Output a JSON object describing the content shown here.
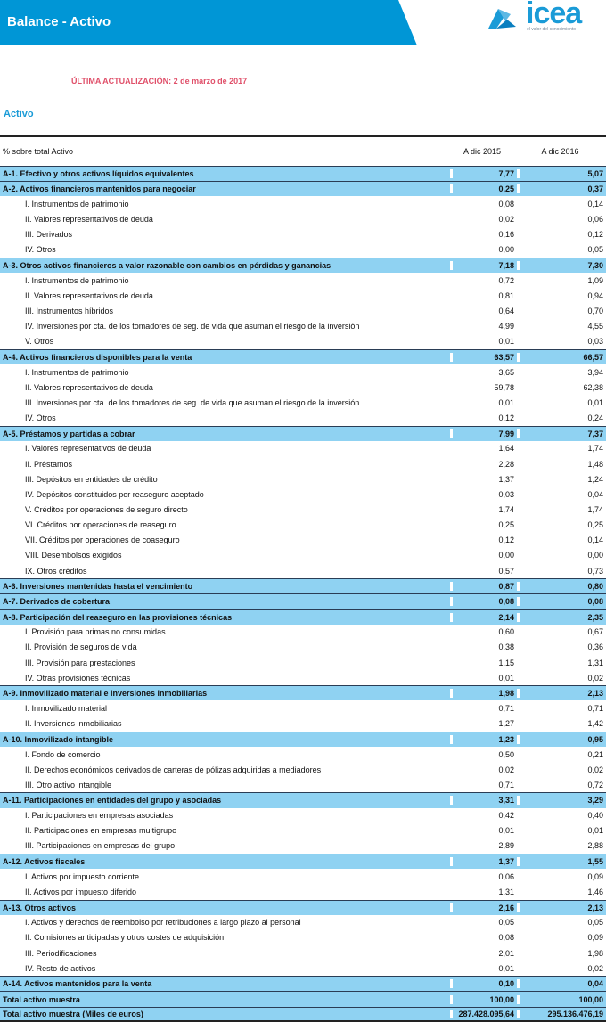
{
  "header": {
    "title": "Balance - Activo",
    "logo_text": "icea",
    "logo_tagline": "el valor del conocimiento",
    "brand_color": "#0096d6"
  },
  "update_label": "ÚLTIMA ACTUALIZACIÓN:  2 de marzo de 2017",
  "section_title": "Activo",
  "table": {
    "columns": [
      "% sobre total Activo",
      "A dic 2015",
      "A dic 2016"
    ],
    "rows": [
      {
        "label": "A-1. Efectivo y otros activos líquidos equivalentes",
        "v2015": "7,77",
        "v2016": "5,07",
        "bold": true
      },
      {
        "label": "A-2. Activos financieros mantenidos para negociar",
        "v2015": "0,25",
        "v2016": "0,37",
        "bold": true
      },
      {
        "label": "I. Instrumentos de patrimonio",
        "v2015": "0,08",
        "v2016": "0,14"
      },
      {
        "label": "II. Valores representativos de deuda",
        "v2015": "0,02",
        "v2016": "0,06"
      },
      {
        "label": "III. Derivados",
        "v2015": "0,16",
        "v2016": "0,12"
      },
      {
        "label": "IV. Otros",
        "v2015": "0,00",
        "v2016": "0,05"
      },
      {
        "label": "A-3. Otros activos financieros a valor razonable con cambios en pérdidas y ganancias",
        "v2015": "7,18",
        "v2016": "7,30",
        "bold": true
      },
      {
        "label": "I. Instrumentos de patrimonio",
        "v2015": "0,72",
        "v2016": "1,09"
      },
      {
        "label": "II. Valores representativos de deuda",
        "v2015": "0,81",
        "v2016": "0,94"
      },
      {
        "label": "III. Instrumentos híbridos",
        "v2015": "0,64",
        "v2016": "0,70"
      },
      {
        "label": "IV. Inversiones por cta. de los tomadores de seg. de vida que asuman el riesgo de la inversión",
        "v2015": "4,99",
        "v2016": "4,55"
      },
      {
        "label": "V. Otros",
        "v2015": "0,01",
        "v2016": "0,03"
      },
      {
        "label": "A-4. Activos financieros disponibles para la venta",
        "v2015": "63,57",
        "v2016": "66,57",
        "bold": true
      },
      {
        "label": "I. Instrumentos de patrimonio",
        "v2015": "3,65",
        "v2016": "3,94"
      },
      {
        "label": "II. Valores representativos de deuda",
        "v2015": "59,78",
        "v2016": "62,38"
      },
      {
        "label": "III. Inversiones por cta. de los tomadores de seg. de vida que asuman el riesgo de la inversión",
        "v2015": "0,01",
        "v2016": "0,01"
      },
      {
        "label": "IV. Otros",
        "v2015": "0,12",
        "v2016": "0,24"
      },
      {
        "label": "A-5. Préstamos y partidas a cobrar",
        "v2015": "7,99",
        "v2016": "7,37",
        "bold": true
      },
      {
        "label": "I. Valores representativos de deuda",
        "v2015": "1,64",
        "v2016": "1,74"
      },
      {
        "label": "II. Préstamos",
        "v2015": "2,28",
        "v2016": "1,48"
      },
      {
        "label": "III. Depósitos en entidades de crédito",
        "v2015": "1,37",
        "v2016": "1,24"
      },
      {
        "label": "IV. Depósitos constituidos por reaseguro aceptado",
        "v2015": "0,03",
        "v2016": "0,04"
      },
      {
        "label": "V. Créditos por operaciones de seguro directo",
        "v2015": "1,74",
        "v2016": "1,74"
      },
      {
        "label": "VI. Créditos por operaciones de reaseguro",
        "v2015": "0,25",
        "v2016": "0,25"
      },
      {
        "label": "VII. Créditos por operaciones de coaseguro",
        "v2015": "0,12",
        "v2016": "0,14"
      },
      {
        "label": "VIII. Desembolsos exigidos",
        "v2015": "0,00",
        "v2016": "0,00"
      },
      {
        "label": "IX. Otros créditos",
        "v2015": "0,57",
        "v2016": "0,73"
      },
      {
        "label": "A-6. Inversiones mantenidas hasta el vencimiento",
        "v2015": "0,87",
        "v2016": "0,80",
        "bold": true
      },
      {
        "label": "A-7. Derivados de cobertura",
        "v2015": "0,08",
        "v2016": "0,08",
        "bold": true
      },
      {
        "label": "A-8. Participación del reaseguro en las provisiones técnicas",
        "v2015": "2,14",
        "v2016": "2,35",
        "bold": true
      },
      {
        "label": "I. Provisión para primas no consumidas",
        "v2015": "0,60",
        "v2016": "0,67"
      },
      {
        "label": "II. Provisión de seguros de vida",
        "v2015": "0,38",
        "v2016": "0,36"
      },
      {
        "label": "III. Provisión para prestaciones",
        "v2015": "1,15",
        "v2016": "1,31"
      },
      {
        "label": "IV. Otras provisiones técnicas",
        "v2015": "0,01",
        "v2016": "0,02"
      },
      {
        "label": "A-9. Inmovilizado material e inversiones inmobiliarias",
        "v2015": "1,98",
        "v2016": "2,13",
        "bold": true
      },
      {
        "label": "I. Inmovilizado material",
        "v2015": "0,71",
        "v2016": "0,71"
      },
      {
        "label": "II. Inversiones inmobiliarias",
        "v2015": "1,27",
        "v2016": "1,42"
      },
      {
        "label": "A-10. Inmovilizado intangible",
        "v2015": "1,23",
        "v2016": "0,95",
        "bold": true
      },
      {
        "label": "I. Fondo de comercio",
        "v2015": "0,50",
        "v2016": "0,21"
      },
      {
        "label": "II. Derechos económicos derivados de carteras de pólizas adquiridas a mediadores",
        "v2015": "0,02",
        "v2016": "0,02"
      },
      {
        "label": "III. Otro activo intangible",
        "v2015": "0,71",
        "v2016": "0,72"
      },
      {
        "label": "A-11. Participaciones en entidades del grupo y asociadas",
        "v2015": "3,31",
        "v2016": "3,29",
        "bold": true
      },
      {
        "label": "I. Participaciones en empresas asociadas",
        "v2015": "0,42",
        "v2016": "0,40"
      },
      {
        "label": "II. Participaciones en empresas multigrupo",
        "v2015": "0,01",
        "v2016": "0,01"
      },
      {
        "label": "III. Participaciones en empresas del grupo",
        "v2015": "2,89",
        "v2016": "2,88"
      },
      {
        "label": "A-12. Activos fiscales",
        "v2015": "1,37",
        "v2016": "1,55",
        "bold": true
      },
      {
        "label": "I. Activos por impuesto corriente",
        "v2015": "0,06",
        "v2016": "0,09"
      },
      {
        "label": "II. Activos por impuesto diferido",
        "v2015": "1,31",
        "v2016": "1,46"
      },
      {
        "label": "A-13. Otros activos",
        "v2015": "2,16",
        "v2016": "2,13",
        "bold": true
      },
      {
        "label": "I. Activos y derechos de reembolso por retribuciones a largo plazo al personal",
        "v2015": "0,05",
        "v2016": "0,05"
      },
      {
        "label": "II. Comisiones anticipadas y otros costes de adquisición",
        "v2015": "0,08",
        "v2016": "0,09"
      },
      {
        "label": "III. Periodificaciones",
        "v2015": "2,01",
        "v2016": "1,98"
      },
      {
        "label": "IV. Resto de activos",
        "v2015": "0,01",
        "v2016": "0,02"
      },
      {
        "label": "A-14. Activos mantenidos para la venta",
        "v2015": "0,10",
        "v2016": "0,04",
        "bold": true
      },
      {
        "label": "Total activo muestra",
        "v2015": "100,00",
        "v2016": "100,00",
        "bold": true
      },
      {
        "label": "Total activo muestra (Miles de euros)",
        "v2015": "287.428.095,64",
        "v2016": "295.136.476,19",
        "bold": true
      }
    ]
  }
}
